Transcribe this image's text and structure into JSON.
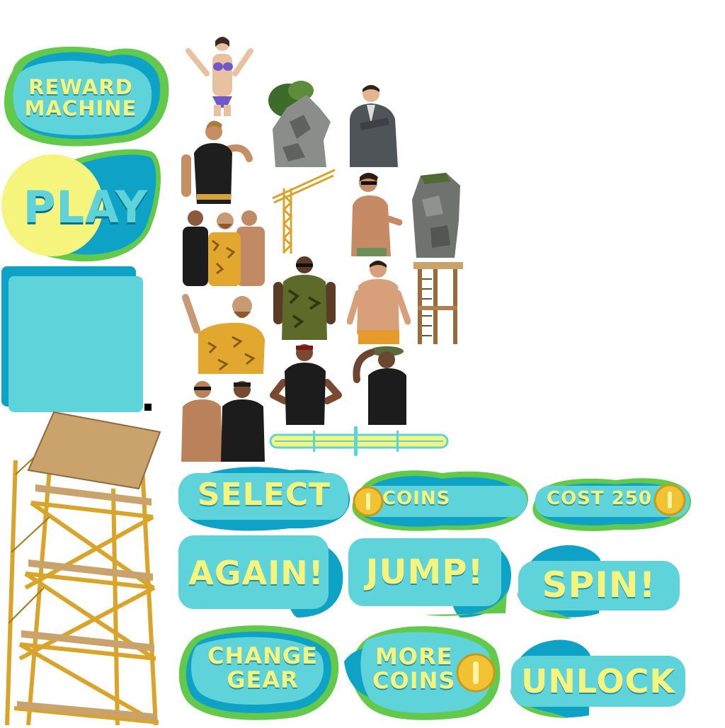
{
  "colors": {
    "teal": "#5fd3da",
    "dark_teal": "#0ea2c7",
    "green": "#63c94a",
    "label_yellow": "#f5f57e",
    "coin_gold": "#f1c232",
    "wood": "#c9a36b",
    "scaffold": "#d8a52a"
  },
  "buttons": {
    "reward_machine": "REWARD\nMACHINE",
    "play": "PLAY",
    "select": "SELECT",
    "coins": "COINS",
    "cost": "COST 250",
    "again": "AGAIN!",
    "jump": "JUMP!",
    "spin": "SPIN!",
    "change_gear": "CHANGE\nGEAR",
    "more_coins": "MORE\nCOINS",
    "unlock": "UNLOCK"
  },
  "sprites": {
    "characters": [
      "woman-bikini-character",
      "man-tank-top-character",
      "man-suit-character",
      "group-beach-characters",
      "man-shirtless-sunglasses-character",
      "man-hawaiian-shirt-character",
      "man-camo-tank-character",
      "man-shirtless-character",
      "man-black-tank-character",
      "man-hat-tank-character",
      "pair-beach-characters"
    ],
    "props": [
      "rock-cliff-tree",
      "crane",
      "rock-pillar",
      "lifeguard-tower",
      "scaffold-tower",
      "slider-track"
    ]
  }
}
